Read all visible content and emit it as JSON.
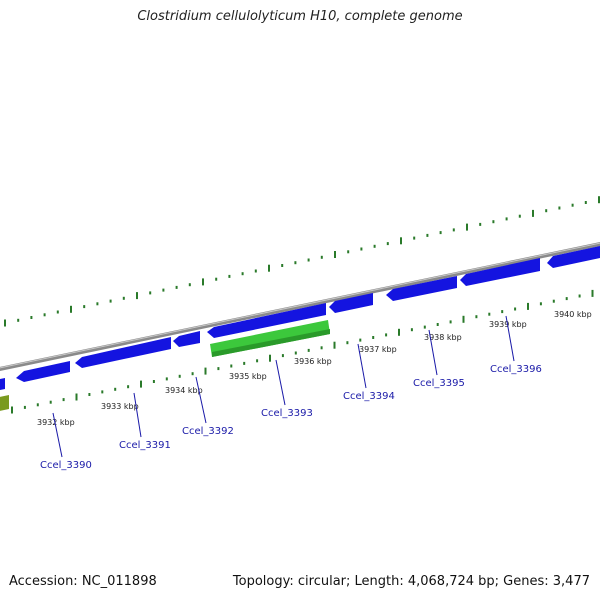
{
  "title": "Clostridium cellulolyticum H10, complete genome",
  "footer": {
    "accession": "Accession: NC_011898",
    "topology": "Topology: circular; Length: 4,068,724 bp; Genes: 3,477"
  },
  "scale_labels": [
    "3932 kbp",
    "3933 kbp",
    "3934 kbp",
    "3935 kbp",
    "3936 kbp",
    "3937 kbp",
    "3938 kbp",
    "3939 kbp",
    "3940 kbp"
  ],
  "gene_labels": [
    "Ccel_3390",
    "Ccel_3391",
    "Ccel_3392",
    "Ccel_3393",
    "Ccel_3394",
    "Ccel_3395",
    "Ccel_3396"
  ],
  "colors": {
    "backbone": "#8a8a8a",
    "gene_forward": "#1414e0",
    "gene_reverse": "#1414e0",
    "gene_highlight": "#3cc83c",
    "gene_other": "#7a9a20",
    "tick": "#2a7a2a",
    "label": "#1a1aa8"
  }
}
